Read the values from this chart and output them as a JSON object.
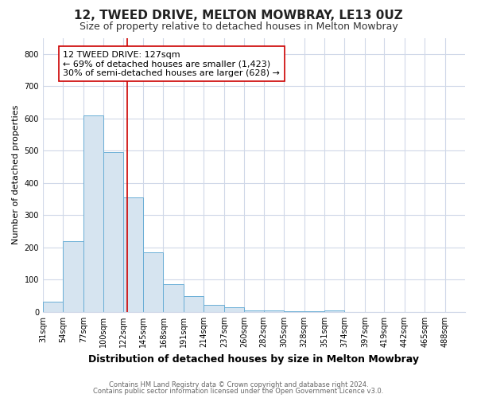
{
  "title1": "12, TWEED DRIVE, MELTON MOWBRAY, LE13 0UZ",
  "title2": "Size of property relative to detached houses in Melton Mowbray",
  "xlabel": "Distribution of detached houses by size in Melton Mowbray",
  "ylabel": "Number of detached properties",
  "bin_labels": [
    "31sqm",
    "54sqm",
    "77sqm",
    "100sqm",
    "122sqm",
    "145sqm",
    "168sqm",
    "191sqm",
    "214sqm",
    "237sqm",
    "260sqm",
    "282sqm",
    "305sqm",
    "328sqm",
    "351sqm",
    "374sqm",
    "397sqm",
    "419sqm",
    "442sqm",
    "465sqm",
    "488sqm"
  ],
  "bin_edges": [
    31,
    54,
    77,
    100,
    122,
    145,
    168,
    191,
    214,
    237,
    260,
    282,
    305,
    328,
    351,
    374,
    397,
    419,
    442,
    465,
    488,
    511
  ],
  "bar_heights": [
    32,
    220,
    610,
    495,
    355,
    185,
    85,
    50,
    22,
    14,
    5,
    4,
    3,
    2,
    5,
    1,
    1,
    1,
    0,
    0,
    0
  ],
  "bar_color": "#d6e4f0",
  "bar_edge_color": "#6aaed6",
  "property_size": 127,
  "vline_color": "#cc0000",
  "annotation_line1": "12 TWEED DRIVE: 127sqm",
  "annotation_line2": "← 69% of detached houses are smaller (1,423)",
  "annotation_line3": "30% of semi-detached houses are larger (628) →",
  "annotation_box_color": "#ffffff",
  "annotation_box_edge": "#cc0000",
  "ylim": [
    0,
    850
  ],
  "yticks": [
    0,
    100,
    200,
    300,
    400,
    500,
    600,
    700,
    800
  ],
  "footer1": "Contains HM Land Registry data © Crown copyright and database right 2024.",
  "footer2": "Contains public sector information licensed under the Open Government Licence v3.0.",
  "background_color": "#ffffff",
  "plot_bg_color": "#ffffff",
  "grid_color": "#d0d8e8",
  "title1_fontsize": 11,
  "title2_fontsize": 9,
  "xlabel_fontsize": 9,
  "ylabel_fontsize": 8,
  "tick_fontsize": 7,
  "annotation_fontsize": 8,
  "footer_fontsize": 6
}
